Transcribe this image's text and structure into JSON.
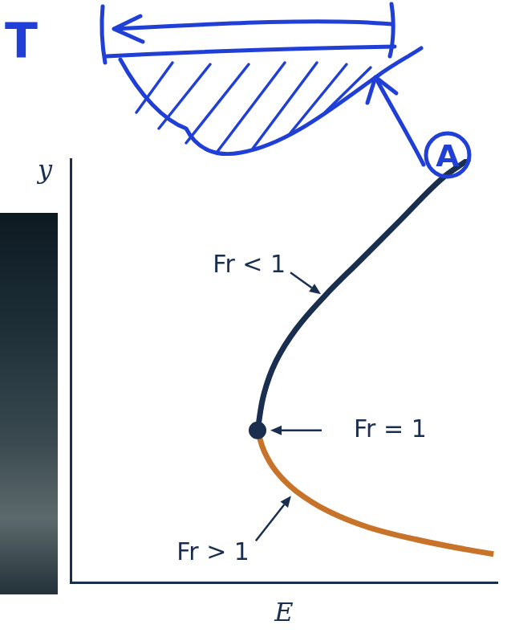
{
  "chart_data": {
    "type": "line",
    "x_label": "E",
    "y_label": "y",
    "xlim": [
      0,
      10
    ],
    "ylim": [
      0,
      10
    ],
    "tick_labels": false,
    "grid": false,
    "series": [
      {
        "name": "Fr < 1",
        "color": "#1a2e4f",
        "line_style": "solid",
        "x": [
          4.38,
          4.53,
          4.81,
          5.28,
          5.94,
          6.79,
          7.74,
          8.68,
          9.34
        ],
        "values": [
          3.59,
          4.45,
          5.22,
          5.98,
          6.75,
          7.61,
          8.57,
          9.52,
          10.0
        ]
      },
      {
        "name": "Fr > 1",
        "color": "#c8732a",
        "line_style": "solid",
        "x": [
          4.38,
          4.53,
          4.81,
          5.28,
          6.04,
          6.98,
          8.11,
          9.25,
          9.91
        ],
        "values": [
          3.59,
          3.11,
          2.63,
          2.16,
          1.68,
          1.3,
          1.01,
          0.78,
          0.67
        ]
      },
      {
        "name": "Fr = 1",
        "color": "#1a2e4f",
        "type": "scatter",
        "marker": "circle",
        "x": [
          4.38
        ],
        "values": [
          3.59
        ]
      }
    ],
    "annotations": [
      "T",
      "A"
    ]
  }
}
